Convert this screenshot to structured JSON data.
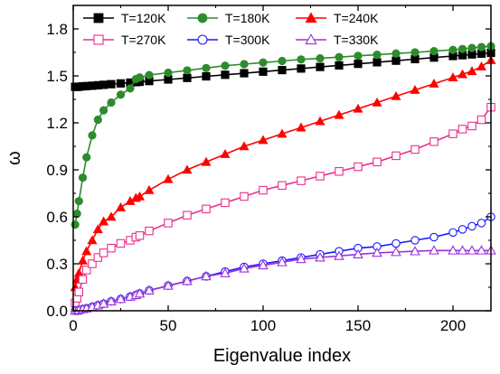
{
  "chart_data": {
    "type": "line",
    "title": "",
    "xlabel": "Eigenvalue index",
    "ylabel": "ω",
    "xlim": [
      0,
      220
    ],
    "ylim": [
      0.0,
      1.95
    ],
    "xticks": [
      0,
      50,
      100,
      150,
      200
    ],
    "yticks": [
      0.0,
      0.3,
      0.6,
      0.9,
      1.2,
      1.5,
      1.8
    ],
    "ytick_labels": [
      "0.0",
      "0.3",
      "0.6",
      "0.9",
      "1.2",
      "1.5",
      "1.8"
    ],
    "grid": false,
    "legend_placement": "top-left, 3 columns",
    "x": [
      1,
      2,
      3,
      5,
      7,
      10,
      13,
      16,
      20,
      25,
      30,
      33,
      35,
      40,
      50,
      60,
      70,
      80,
      90,
      100,
      110,
      120,
      130,
      140,
      150,
      160,
      170,
      180,
      190,
      200,
      205,
      210,
      215,
      220
    ],
    "series": [
      {
        "name": "T=120K",
        "color": "#000000",
        "marker": "square-filled",
        "values": [
          1.43,
          1.43,
          1.431,
          1.433,
          1.435,
          1.437,
          1.44,
          1.443,
          1.447,
          1.452,
          1.457,
          1.46,
          1.462,
          1.467,
          1.477,
          1.487,
          1.497,
          1.507,
          1.517,
          1.527,
          1.537,
          1.547,
          1.557,
          1.567,
          1.577,
          1.587,
          1.597,
          1.607,
          1.617,
          1.627,
          1.632,
          1.637,
          1.642,
          1.647
        ]
      },
      {
        "name": "T=180K",
        "color": "#2e8b2e",
        "marker": "circle-filled",
        "values": [
          0.55,
          0.62,
          0.7,
          0.85,
          0.98,
          1.12,
          1.22,
          1.28,
          1.33,
          1.38,
          1.42,
          1.48,
          1.49,
          1.505,
          1.52,
          1.535,
          1.55,
          1.565,
          1.575,
          1.585,
          1.595,
          1.605,
          1.612,
          1.62,
          1.628,
          1.635,
          1.643,
          1.65,
          1.658,
          1.666,
          1.672,
          1.678,
          1.684,
          1.69
        ]
      },
      {
        "name": "T=240K",
        "color": "#ff0000",
        "marker": "triangle-filled",
        "values": [
          0.15,
          0.2,
          0.24,
          0.32,
          0.38,
          0.45,
          0.52,
          0.57,
          0.6,
          0.66,
          0.7,
          0.72,
          0.73,
          0.77,
          0.84,
          0.9,
          0.95,
          1.0,
          1.05,
          1.09,
          1.13,
          1.17,
          1.21,
          1.25,
          1.29,
          1.33,
          1.37,
          1.41,
          1.45,
          1.49,
          1.51,
          1.53,
          1.56,
          1.6
        ]
      },
      {
        "name": "T=270K",
        "color": "#e8308c",
        "marker": "square-open",
        "values": [
          0.05,
          0.08,
          0.12,
          0.2,
          0.26,
          0.3,
          0.34,
          0.37,
          0.4,
          0.43,
          0.45,
          0.47,
          0.48,
          0.51,
          0.56,
          0.61,
          0.65,
          0.69,
          0.73,
          0.77,
          0.8,
          0.83,
          0.86,
          0.89,
          0.92,
          0.95,
          0.99,
          1.03,
          1.08,
          1.13,
          1.16,
          1.18,
          1.22,
          1.3
        ]
      },
      {
        "name": "T=300K",
        "color": "#1a1aff",
        "marker": "circle-open",
        "values": [
          0.0,
          0.0,
          0.005,
          0.01,
          0.015,
          0.025,
          0.035,
          0.045,
          0.06,
          0.075,
          0.09,
          0.1,
          0.11,
          0.13,
          0.16,
          0.19,
          0.22,
          0.25,
          0.28,
          0.3,
          0.32,
          0.34,
          0.36,
          0.38,
          0.4,
          0.41,
          0.43,
          0.45,
          0.47,
          0.5,
          0.52,
          0.54,
          0.56,
          0.6
        ]
      },
      {
        "name": "T=330K",
        "color": "#9b30d9",
        "marker": "triangle-open",
        "values": [
          0.0,
          0.0,
          0.005,
          0.01,
          0.015,
          0.025,
          0.035,
          0.045,
          0.06,
          0.075,
          0.09,
          0.1,
          0.11,
          0.13,
          0.16,
          0.19,
          0.22,
          0.24,
          0.27,
          0.29,
          0.31,
          0.33,
          0.34,
          0.35,
          0.36,
          0.37,
          0.375,
          0.38,
          0.385,
          0.385,
          0.385,
          0.385,
          0.385,
          0.385
        ]
      }
    ]
  }
}
